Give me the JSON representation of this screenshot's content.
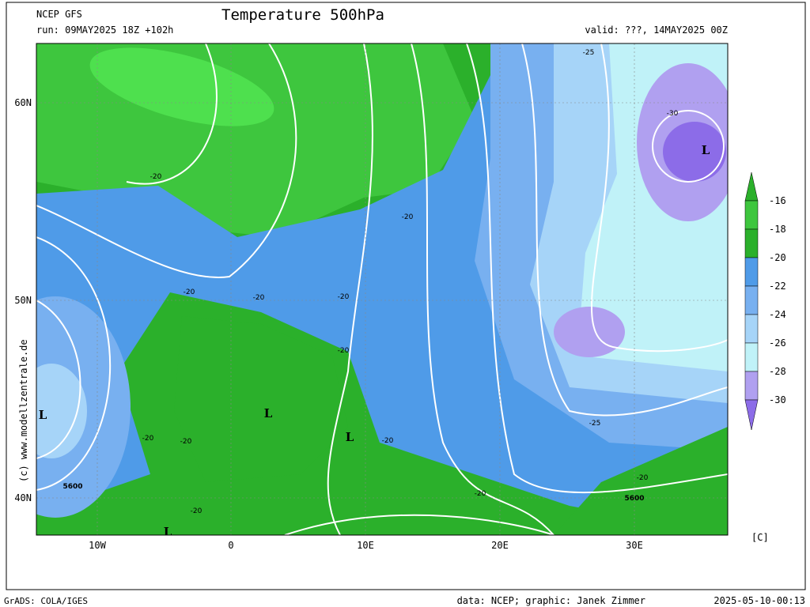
{
  "header": {
    "model": "NCEP GFS",
    "title": "Temperature 500hPa",
    "run": "run: 09MAY2025 18Z +102h",
    "valid": "valid: ???, 14MAY2025 00Z"
  },
  "axes": {
    "lat_labels": [
      "60N",
      "50N",
      "40N"
    ],
    "lon_labels": [
      "10W",
      "0",
      "10E",
      "20E",
      "30E"
    ]
  },
  "legend": {
    "levels": [
      "-16",
      "-18",
      "-20",
      "-22",
      "-24",
      "-26",
      "-28",
      "-30"
    ],
    "unit": "[C]"
  },
  "map_labels": [
    "-25",
    "-30",
    "L",
    "-20",
    "-20",
    "-20",
    "-20",
    "-20",
    "-20",
    "L",
    "L",
    "L",
    "-20",
    "-20",
    "-20",
    "-25",
    "-20",
    "-20",
    "5600",
    "5600",
    "-20",
    "L"
  ],
  "watermark": "(c)  www.modellzentrale.de",
  "footer": {
    "software": "GrADS: COLA/IGES",
    "credit": "data: NCEP; graphic: Janek Zimmer",
    "timestamp": "2025-05-10-00:13"
  }
}
